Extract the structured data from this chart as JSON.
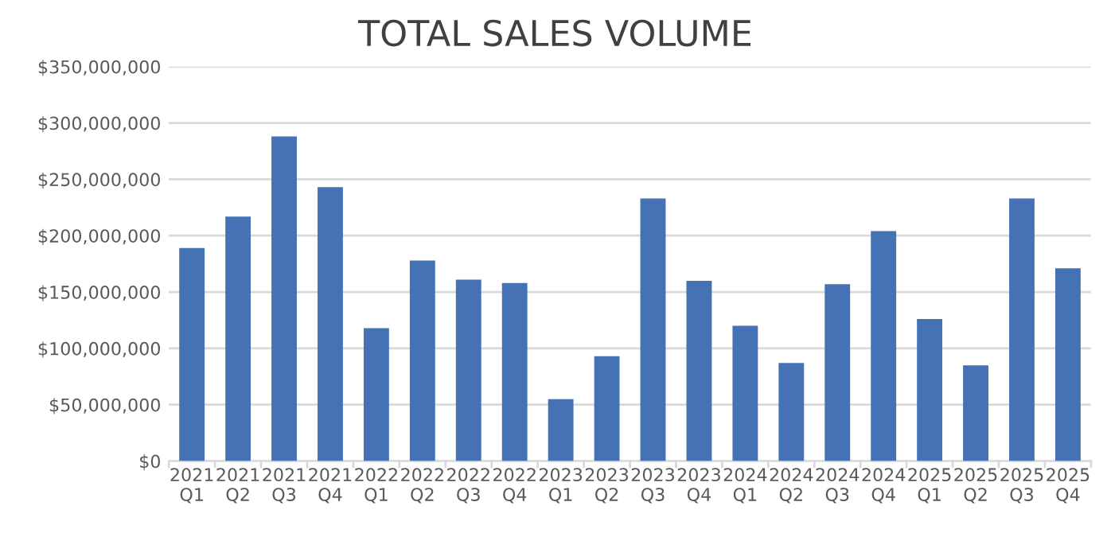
{
  "chart_data": {
    "type": "bar",
    "title": "TOTAL SALES VOLUME",
    "categories": [
      "2021\nQ1",
      "2021\nQ2",
      "2021\nQ3",
      "2021\nQ4",
      "2022\nQ1",
      "2022\nQ2",
      "2022\nQ3",
      "2022\nQ4",
      "2023\nQ1",
      "2023\nQ2",
      "2023\nQ3",
      "2023\nQ4",
      "2024\nQ1",
      "2024\nQ2",
      "2024\nQ3",
      "2024\nQ4",
      "2025\nQ1",
      "2025\nQ2",
      "2025\nQ3",
      "2025\nQ4"
    ],
    "values": [
      189000000,
      217000000,
      288000000,
      243000000,
      118000000,
      178000000,
      161000000,
      158000000,
      55000000,
      93000000,
      233000000,
      160000000,
      120000000,
      87000000,
      157000000,
      204000000,
      126000000,
      85000000,
      233000000,
      171000000
    ],
    "color": "#4472b4",
    "ylim": [
      0,
      350000000
    ],
    "yticks": [
      {
        "value": 0,
        "label": "$0"
      },
      {
        "value": 50000000,
        "label": "$50,000,000"
      },
      {
        "value": 100000000,
        "label": "$100,000,000"
      },
      {
        "value": 150000000,
        "label": "$150,000,000"
      },
      {
        "value": 200000000,
        "label": "$200,000,000"
      },
      {
        "value": 250000000,
        "label": "$250,000,000"
      },
      {
        "value": 300000000,
        "label": "$300,000,000"
      },
      {
        "value": 350000000,
        "label": "$350,000,000"
      }
    ],
    "grid": "y",
    "legend": false
  }
}
